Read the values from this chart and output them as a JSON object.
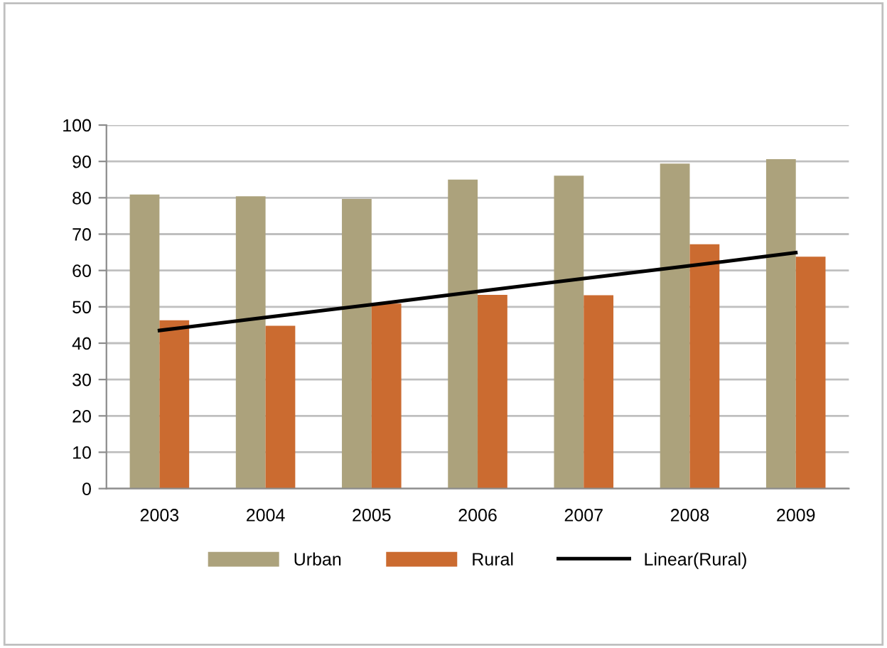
{
  "chart_data": {
    "type": "bar",
    "categories": [
      "2003",
      "2004",
      "2005",
      "2006",
      "2007",
      "2008",
      "2009"
    ],
    "series": [
      {
        "name": "Urban",
        "color": "#aca27c",
        "values": [
          80.9,
          80.4,
          79.7,
          85.0,
          86.1,
          89.4,
          90.6
        ]
      },
      {
        "name": "Rural",
        "color": "#cb6b30",
        "values": [
          46.3,
          44.8,
          50.9,
          53.3,
          53.2,
          67.2,
          63.8
        ]
      },
      {
        "name": "Linear(Rural)",
        "type": "line",
        "color": "#000000",
        "values": [
          43.5,
          47.1,
          50.6,
          54.2,
          57.8,
          61.3,
          64.9
        ]
      }
    ],
    "ylim": [
      0,
      100
    ],
    "yticks": [
      0,
      10,
      20,
      30,
      40,
      50,
      60,
      70,
      80,
      90,
      100
    ],
    "grid": "y",
    "legend": "bottom"
  }
}
